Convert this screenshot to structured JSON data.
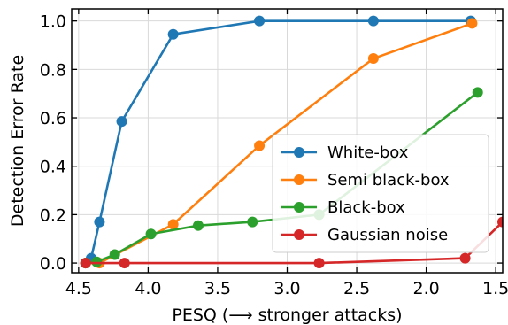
{
  "chart_data": {
    "type": "line",
    "title": "",
    "xlabel": "PESQ (⟶ stronger attacks)",
    "ylabel": "Detection Error Rate",
    "xlim": [
      4.55,
      1.45
    ],
    "ylim": [
      -0.04,
      1.05
    ],
    "x_inverted": true,
    "grid": true,
    "legend_position": "center-right",
    "x_ticks": [
      4.5,
      4.0,
      3.5,
      3.0,
      2.5,
      2.0,
      1.5
    ],
    "x_tick_labels": [
      "4.5",
      "4.0",
      "3.5",
      "3.0",
      "2.5",
      "2.0",
      "1.5"
    ],
    "y_ticks": [
      0.0,
      0.2,
      0.4,
      0.6,
      0.8,
      1.0
    ],
    "y_tick_labels": [
      "0.0",
      "0.2",
      "0.4",
      "0.6",
      "0.8",
      "1.0"
    ],
    "series": [
      {
        "name": "White-box",
        "color": "#1f77b4",
        "x": [
          4.45,
          4.41,
          4.35,
          4.19,
          3.82,
          3.2,
          2.38,
          1.68
        ],
        "y": [
          0.0,
          0.02,
          0.17,
          0.585,
          0.945,
          1.0,
          1.0,
          1.0
        ]
      },
      {
        "name": "Semi black-box",
        "color": "#ff7f0e",
        "x": [
          4.45,
          4.35,
          3.82,
          3.2,
          2.38,
          1.67
        ],
        "y": [
          0.0,
          0.0,
          0.16,
          0.485,
          0.845,
          0.99
        ]
      },
      {
        "name": "Black-box",
        "color": "#2ca02c",
        "x": [
          4.45,
          4.37,
          4.24,
          3.98,
          3.64,
          3.25,
          2.77,
          1.63
        ],
        "y": [
          0.0,
          0.005,
          0.035,
          0.12,
          0.155,
          0.17,
          0.2,
          0.705
        ]
      },
      {
        "name": "Gaussian noise",
        "color": "#d62728",
        "x": [
          4.45,
          4.17,
          2.77,
          1.72,
          1.45
        ],
        "y": [
          0.0,
          0.0,
          0.0,
          0.02,
          0.17
        ]
      }
    ]
  }
}
